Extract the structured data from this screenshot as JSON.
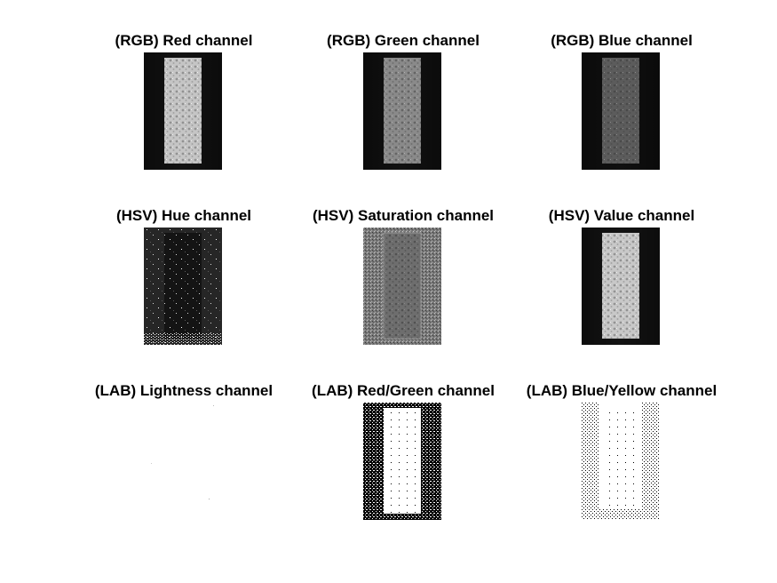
{
  "figure": {
    "background": "#ffffff",
    "panels": [
      {
        "title": "(RGB) Red channel",
        "image": "grayscale-channel"
      },
      {
        "title": "(RGB) Green channel",
        "image": "grayscale-channel"
      },
      {
        "title": "(RGB) Blue channel",
        "image": "grayscale-channel"
      },
      {
        "title": "(HSV) Hue channel",
        "image": "grayscale-channel"
      },
      {
        "title": "(HSV) Saturation channel",
        "image": "grayscale-channel"
      },
      {
        "title": "(HSV) Value channel",
        "image": "grayscale-channel"
      },
      {
        "title": "(LAB) Lightness channel",
        "image": "grayscale-channel"
      },
      {
        "title": "(LAB) Red/Green channel",
        "image": "grayscale-channel"
      },
      {
        "title": "(LAB) Blue/Yellow channel",
        "image": "grayscale-channel"
      }
    ]
  }
}
